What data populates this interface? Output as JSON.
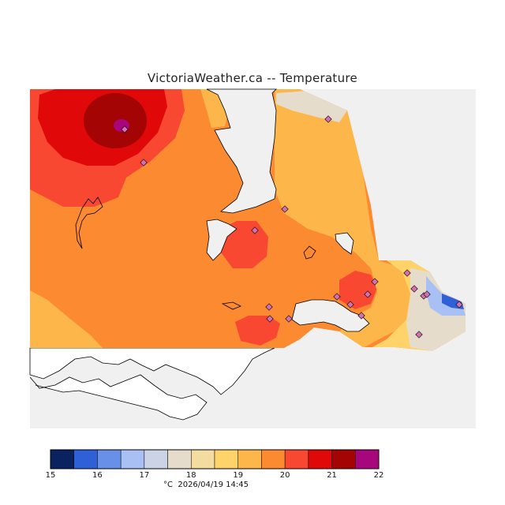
{
  "title": "VictoriaWeather.ca -- Temperature",
  "legend": {
    "unit": "°C",
    "timestamp": "2026/04/19 14:45",
    "ticks": [
      "15",
      "16",
      "17",
      "18",
      "19",
      "20",
      "21",
      "22"
    ],
    "bins": [
      {
        "from": 15.0,
        "to": 15.5,
        "color": "#0a2260"
      },
      {
        "from": 15.5,
        "to": 16.0,
        "color": "#3060d8"
      },
      {
        "from": 16.0,
        "to": 16.5,
        "color": "#6890e8"
      },
      {
        "from": 16.5,
        "to": 17.0,
        "color": "#a8c0f4"
      },
      {
        "from": 17.0,
        "to": 17.5,
        "color": "#cdd3e6"
      },
      {
        "from": 17.5,
        "to": 18.0,
        "color": "#e6dccc"
      },
      {
        "from": 18.0,
        "to": 18.5,
        "color": "#f4dca0"
      },
      {
        "from": 18.5,
        "to": 19.0,
        "color": "#fed46a"
      },
      {
        "from": 19.0,
        "to": 19.5,
        "color": "#fdb64a"
      },
      {
        "from": 19.5,
        "to": 20.0,
        "color": "#fb8a30"
      },
      {
        "from": 20.0,
        "to": 20.5,
        "color": "#f84832"
      },
      {
        "from": 20.5,
        "to": 21.0,
        "color": "#e00808"
      },
      {
        "from": 21.0,
        "to": 21.5,
        "color": "#a40404"
      },
      {
        "from": 21.5,
        "to": 22.0,
        "color": "#a8067c"
      }
    ]
  },
  "colors": {
    "water": "#f0f0f0",
    "land_no_data": "#ffffff",
    "station_marker": "#d070b0",
    "coastline": "#000000"
  }
}
